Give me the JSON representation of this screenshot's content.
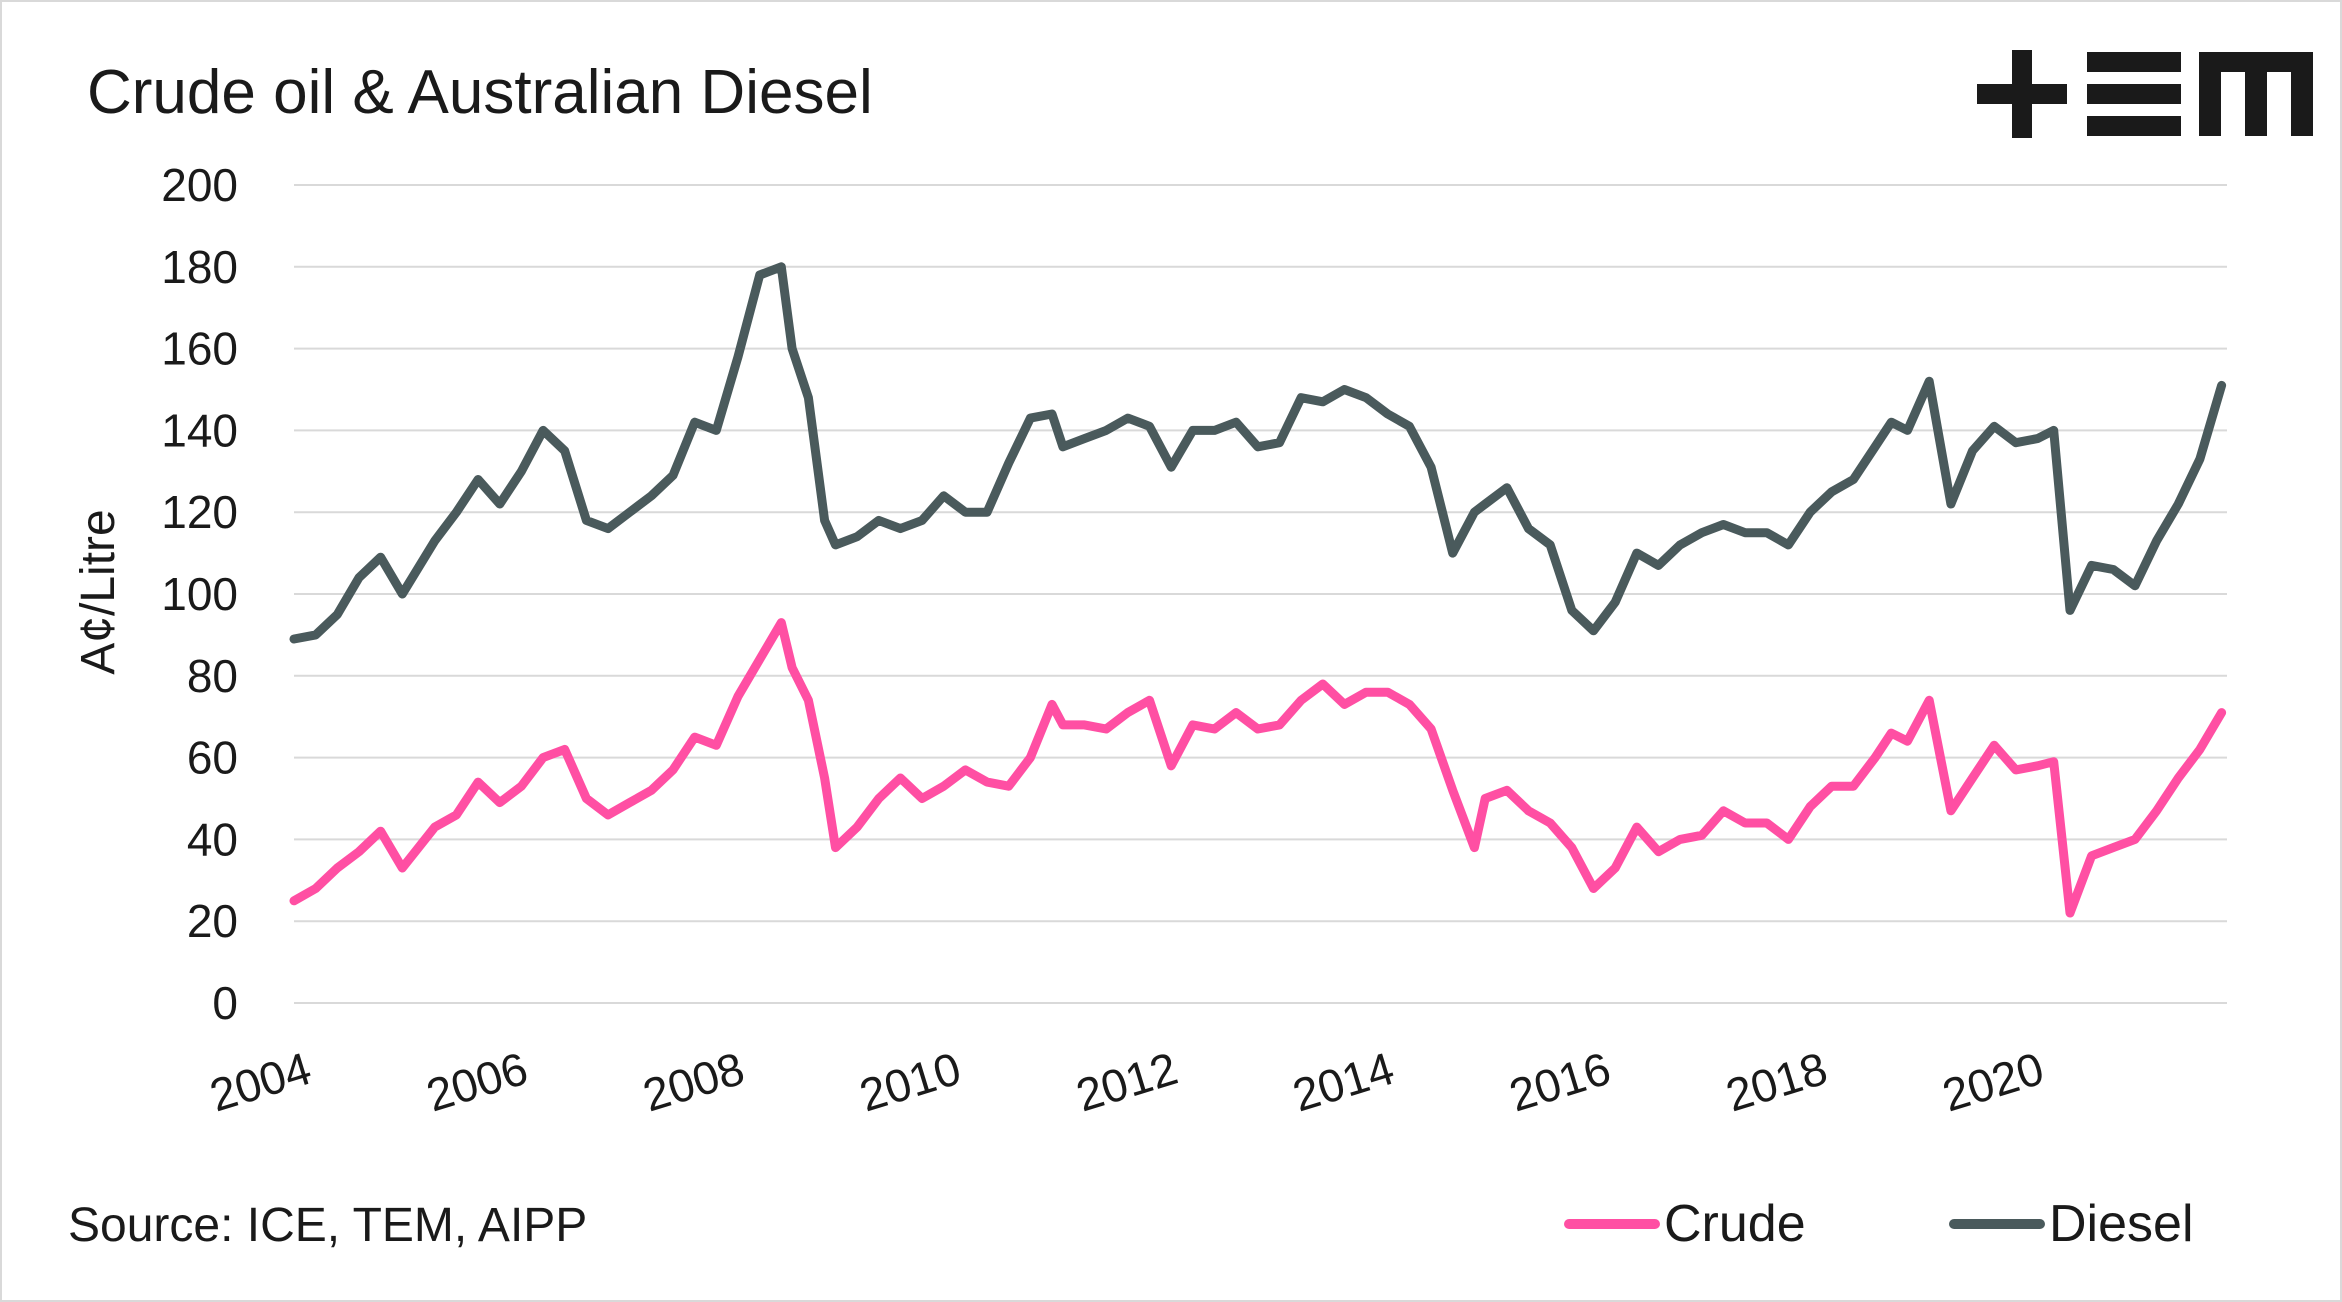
{
  "header": {
    "title": "Crude oil & Australian Diesel",
    "source": "Source: ICE, TEM, AIPP"
  },
  "logo": {
    "text": "+TEM",
    "color": "#1a1a1a"
  },
  "colors": {
    "crude": "#ff4fa3",
    "diesel": "#4a5a5c",
    "grid": "#d9d9d9"
  },
  "chart_data": {
    "type": "line",
    "title": "Crude oil & Australian Diesel",
    "xlabel": "",
    "ylabel": "A¢/Litre",
    "ylim": [
      0,
      200
    ],
    "xlim": [
      2004,
      2021.85
    ],
    "y_ticks": [
      "0",
      "20",
      "40",
      "60",
      "80",
      "100",
      "120",
      "140",
      "160",
      "180",
      "200"
    ],
    "x_ticks": [
      "2004",
      "2006",
      "2008",
      "2010",
      "2012",
      "2014",
      "2016",
      "2018",
      "2020"
    ],
    "grid": true,
    "legend_position": "bottom-right",
    "series": [
      {
        "name": "Crude",
        "color": "#ff4fa3",
        "x": [
          2004.0,
          2004.2,
          2004.4,
          2004.6,
          2004.8,
          2005.0,
          2005.3,
          2005.5,
          2005.7,
          2005.9,
          2006.1,
          2006.3,
          2006.5,
          2006.7,
          2006.9,
          2007.1,
          2007.3,
          2007.5,
          2007.7,
          2007.9,
          2008.1,
          2008.3,
          2008.5,
          2008.6,
          2008.75,
          2008.9,
          2009.0,
          2009.2,
          2009.4,
          2009.6,
          2009.8,
          2010.0,
          2010.2,
          2010.4,
          2010.6,
          2010.8,
          2011.0,
          2011.1,
          2011.3,
          2011.5,
          2011.7,
          2011.9,
          2012.1,
          2012.3,
          2012.5,
          2012.7,
          2012.9,
          2013.1,
          2013.3,
          2013.5,
          2013.7,
          2013.9,
          2014.1,
          2014.3,
          2014.5,
          2014.7,
          2014.9,
          2015.0,
          2015.2,
          2015.4,
          2015.6,
          2015.8,
          2016.0,
          2016.2,
          2016.4,
          2016.6,
          2016.8,
          2017.0,
          2017.2,
          2017.4,
          2017.6,
          2017.8,
          2018.0,
          2018.2,
          2018.4,
          2018.6,
          2018.75,
          2018.9,
          2019.1,
          2019.3,
          2019.5,
          2019.7,
          2019.9,
          2020.1,
          2020.25,
          2020.4,
          2020.6,
          2020.8,
          2021.0,
          2021.2,
          2021.4,
          2021.6,
          2021.8
        ],
        "values": [
          25,
          28,
          33,
          37,
          42,
          33,
          43,
          46,
          54,
          49,
          53,
          60,
          62,
          50,
          46,
          49,
          52,
          57,
          65,
          63,
          75,
          84,
          93,
          82,
          74,
          55,
          38,
          43,
          50,
          55,
          50,
          53,
          57,
          54,
          53,
          60,
          73,
          68,
          68,
          67,
          71,
          74,
          58,
          68,
          67,
          71,
          67,
          68,
          74,
          78,
          73,
          76,
          76,
          73,
          67,
          52,
          38,
          50,
          52,
          47,
          44,
          38,
          28,
          33,
          43,
          37,
          40,
          41,
          47,
          44,
          44,
          40,
          48,
          53,
          53,
          60,
          66,
          64,
          74,
          47,
          55,
          63,
          57,
          58,
          59,
          22,
          36,
          38,
          40,
          47,
          55,
          62,
          71
        ]
      },
      {
        "name": "Diesel",
        "color": "#4a5a5c",
        "x": [
          2004.0,
          2004.2,
          2004.4,
          2004.6,
          2004.8,
          2005.0,
          2005.3,
          2005.5,
          2005.7,
          2005.9,
          2006.1,
          2006.3,
          2006.5,
          2006.7,
          2006.9,
          2007.1,
          2007.3,
          2007.5,
          2007.7,
          2007.9,
          2008.1,
          2008.3,
          2008.5,
          2008.6,
          2008.75,
          2008.9,
          2009.0,
          2009.2,
          2009.4,
          2009.6,
          2009.8,
          2010.0,
          2010.2,
          2010.4,
          2010.6,
          2010.8,
          2011.0,
          2011.1,
          2011.3,
          2011.5,
          2011.7,
          2011.9,
          2012.1,
          2012.3,
          2012.5,
          2012.7,
          2012.9,
          2013.1,
          2013.3,
          2013.5,
          2013.7,
          2013.9,
          2014.1,
          2014.3,
          2014.5,
          2014.7,
          2014.9,
          2015.0,
          2015.2,
          2015.4,
          2015.6,
          2015.8,
          2016.0,
          2016.2,
          2016.4,
          2016.6,
          2016.8,
          2017.0,
          2017.2,
          2017.4,
          2017.6,
          2017.8,
          2018.0,
          2018.2,
          2018.4,
          2018.6,
          2018.75,
          2018.9,
          2019.1,
          2019.3,
          2019.5,
          2019.7,
          2019.9,
          2020.1,
          2020.25,
          2020.4,
          2020.6,
          2020.8,
          2021.0,
          2021.2,
          2021.4,
          2021.6,
          2021.8
        ],
        "values": [
          89,
          90,
          95,
          104,
          109,
          100,
          113,
          120,
          128,
          122,
          130,
          140,
          135,
          118,
          116,
          120,
          124,
          129,
          142,
          140,
          158,
          178,
          180,
          160,
          148,
          118,
          112,
          114,
          118,
          116,
          118,
          124,
          120,
          120,
          132,
          143,
          144,
          136,
          138,
          140,
          143,
          141,
          131,
          140,
          140,
          142,
          136,
          137,
          148,
          147,
          150,
          148,
          144,
          141,
          131,
          110,
          120,
          122,
          126,
          116,
          112,
          96,
          91,
          98,
          110,
          107,
          112,
          115,
          117,
          115,
          115,
          112,
          120,
          125,
          128,
          136,
          142,
          140,
          152,
          122,
          135,
          141,
          137,
          138,
          140,
          96,
          107,
          106,
          102,
          113,
          122,
          133,
          151
        ]
      }
    ]
  }
}
